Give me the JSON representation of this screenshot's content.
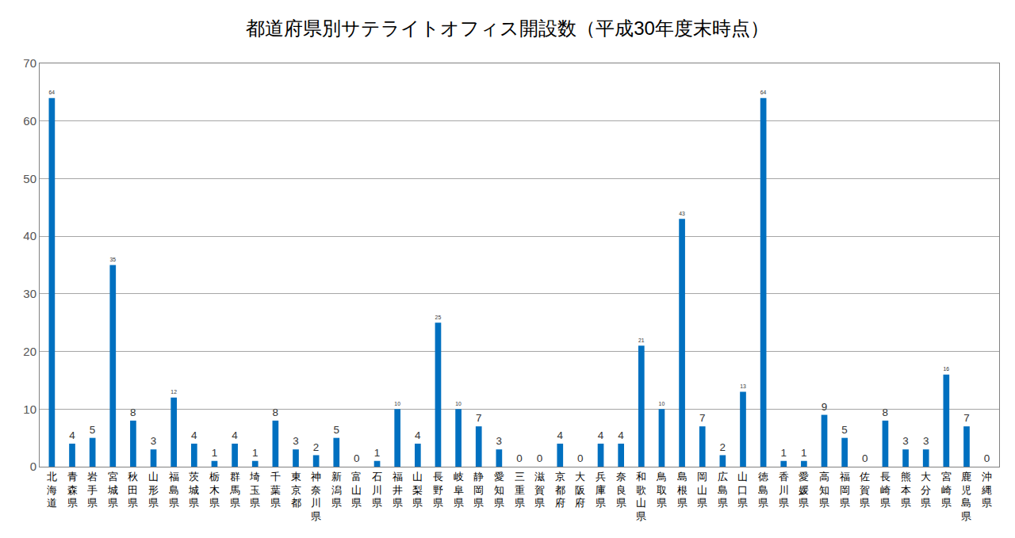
{
  "chart_data": {
    "type": "bar",
    "title": "都道府県別サテライトオフィス開設数（平成30年度末時点）",
    "categories": [
      "北海道",
      "青森県",
      "岩手県",
      "宮城県",
      "秋田県",
      "山形県",
      "福島県",
      "茨城県",
      "栃木県",
      "群馬県",
      "埼玉県",
      "千葉県",
      "東京都",
      "神奈川県",
      "新潟県",
      "富山県",
      "石川県",
      "福井県",
      "山梨県",
      "長野県",
      "岐阜県",
      "静岡県",
      "愛知県",
      "三重県",
      "滋賀県",
      "京都府",
      "大阪府",
      "兵庫県",
      "奈良県",
      "和歌山県",
      "鳥取県",
      "島根県",
      "岡山県",
      "広島県",
      "山口県",
      "徳島県",
      "香川県",
      "愛媛県",
      "高知県",
      "福岡県",
      "佐賀県",
      "長崎県",
      "熊本県",
      "大分県",
      "宮崎県",
      "鹿児島県",
      "沖縄県"
    ],
    "values": [
      64,
      4,
      5,
      35,
      8,
      3,
      12,
      4,
      1,
      4,
      1,
      8,
      3,
      2,
      5,
      0,
      1,
      10,
      4,
      25,
      10,
      7,
      3,
      0,
      0,
      4,
      0,
      4,
      4,
      21,
      10,
      43,
      7,
      2,
      13,
      64,
      1,
      1,
      9,
      5,
      0,
      8,
      3,
      3,
      16,
      7,
      0
    ],
    "color": "#0070c0",
    "ylim": [
      0,
      70
    ],
    "yticks": [
      0,
      10,
      20,
      30,
      40,
      50,
      60,
      70
    ],
    "grid": true,
    "data_labels": true
  }
}
